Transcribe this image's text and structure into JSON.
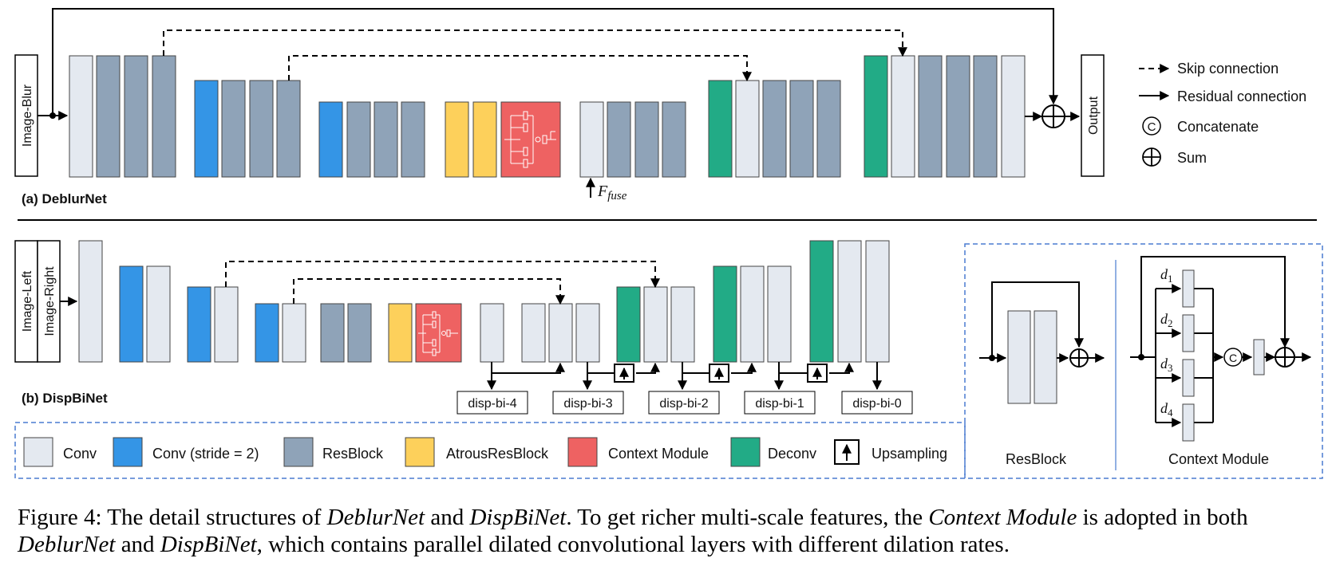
{
  "colors": {
    "conv": "#e4e9f0",
    "conv_stride2": "#3495e6",
    "resblock": "#8fa3b8",
    "atrous_resblock": "#fdd05b",
    "context_module": "#ee6262",
    "deconv": "#22ab86",
    "legend_border": "#4a7bd0"
  },
  "deblurnet": {
    "title": "(a) DeblurNet",
    "input_label": "Image-Blur",
    "output_label": "Output",
    "fuse_label": "F",
    "fuse_sub": "fuse"
  },
  "legend_top": {
    "skip": "Skip connection",
    "residual": "Residual connection",
    "concat_symbol": "C",
    "concat": "Concatenate",
    "sum": "Sum"
  },
  "dispbinet": {
    "title": "(b) DispBiNet",
    "input_left": "Image-Left",
    "input_right": "Image-Right",
    "outputs": [
      "disp-bi-4",
      "disp-bi-3",
      "disp-bi-2",
      "disp-bi-1",
      "disp-bi-0"
    ]
  },
  "legend_bottom": {
    "items": [
      "Conv",
      "Conv (stride = 2)",
      "ResBlock",
      "AtrousResBlock",
      "Context Module",
      "Deconv",
      "Upsampling"
    ]
  },
  "detail": {
    "resblock_label": "ResBlock",
    "context_label": "Context Module",
    "concat_symbol": "C",
    "dilation_var": "d",
    "dilations": [
      "1",
      "2",
      "3",
      "4"
    ]
  },
  "caption": {
    "p1": "Figure 4: The detail structures of ",
    "i1": "DeblurNet",
    "p2": " and ",
    "i2": "DispBiNet",
    "p3": ". To get richer multi-scale features, the ",
    "i3": "Context Module",
    "p4": " is adopted in both ",
    "i4": "DeblurNet",
    "p5": " and ",
    "i5": "DispBiNet",
    "p6": ", which contains parallel dilated convolutional layers with different dilation rates."
  }
}
